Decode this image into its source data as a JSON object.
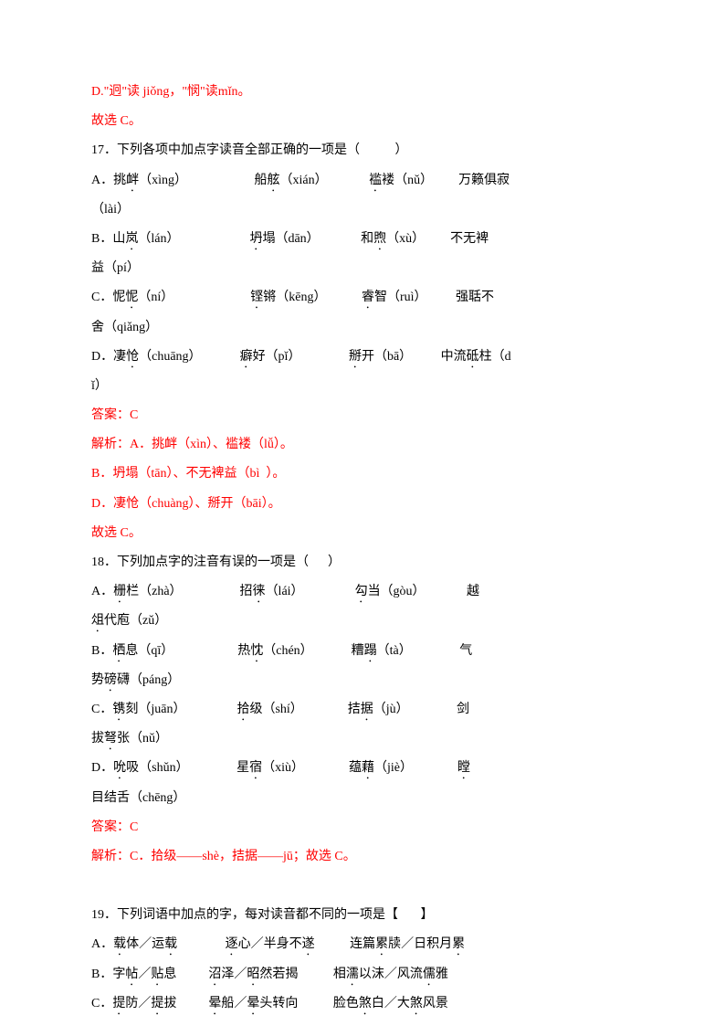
{
  "colors": {
    "text": "#000000",
    "red": "#ff0000",
    "background": "#ffffff"
  },
  "lines": {
    "l1": "D.\"迥\"读 jiǒng，\"悯\"读mǐn。",
    "l2": "故选 C。",
    "q17": "17．下列各项中加点字读音全部正确的一项是（           ）",
    "q17a1": "A．挑",
    "q17a2": "衅（xìng）",
    "q17a3": "船",
    "q17a4": "舷（xián）",
    "q17a5": "褴",
    "q17a6": "褛（nǔ）",
    "q17a7": "万籁俱寂",
    "q17a8": "（lài）",
    "q17b1": "B．山",
    "q17b2": "岚（lán）",
    "q17b3": "坍",
    "q17b4": "塌（dān）",
    "q17b5": "和",
    "q17b6": "煦（xù）",
    "q17b7": "不无裨",
    "q17b8": "益（pí）",
    "q17c1": "C．怩",
    "q17c2": "怩（ní）",
    "q17c3": "铿",
    "q17c4": "锵（kēng）",
    "q17c5": "睿",
    "q17c6": "智（ruì）",
    "q17c7": "强聒不",
    "q17c8": "舍（qiǎng）",
    "q17d1": "D．凄",
    "q17d2": "怆（chuāng）",
    "q17d3": "癖",
    "q17d4": "好（pǐ）",
    "q17d5": "掰",
    "q17d6": "开（bā）",
    "q17d7": "中流",
    "q17d8": "砥",
    "q17d9": "柱（d",
    "q17d10": "ǐ）",
    "a17_1": "答案：C",
    "a17_2": "解析：A．挑衅（xìn）、褴褛（lǚ）。",
    "a17_3": "B．坍塌（tān）、不无裨益（bì  ）。",
    "a17_4": "D．凄怆（chuàng）、掰开（bāi）。",
    "a17_5": "故选 C。",
    "q18": "18．下列加点字的注音有误的一项是（      ）",
    "q18a1": "A．",
    "q18a2": "栅",
    "q18a3": "栏（zhà）",
    "q18a4": "招",
    "q18a5": "徕",
    "q18a6": "（lái）",
    "q18a7": "勾",
    "q18a8": "当（gòu）",
    "q18a9": "越",
    "q18a10": "俎",
    "q18a11": "代庖（zǔ）",
    "q18b1": "B．",
    "q18b2": "栖",
    "q18b3": "息（qī）",
    "q18b4": "热",
    "q18b5": "忱",
    "q18b6": "（chén）",
    "q18b7": "糟",
    "q18b8": "蹋",
    "q18b9": "（tà）",
    "q18b10": "气",
    "q18b11": "势",
    "q18b12": "磅",
    "q18b13": "礴（páng）",
    "q18c1": "C．",
    "q18c2": "镌",
    "q18c3": "刻（juān）",
    "q18c4": "拾",
    "q18c5": "级（shí）",
    "q18c6": "拮",
    "q18c7": "据（jù）",
    "q18c8": "剑",
    "q18c9": "拔",
    "q18c10": "弩",
    "q18c11": "张（nǔ）",
    "q18d1": "D．",
    "q18d2": "吮",
    "q18d3": "吸（shǔn）",
    "q18d4": "星",
    "q18d5": "宿",
    "q18d6": "（xiù）",
    "q18d7": "蕴",
    "q18d8": "藉",
    "q18d9": "（jiè）",
    "q18d10": "瞠",
    "q18d11": "目结舌（chēng）",
    "a18_1": "答案：C",
    "a18_2": "解析：C．拾级——shè，拮据——jū；故选 C。",
    "q19": "19．下列词语中加点的字，每对读音都不同的一项是【       】",
    "q19a1": "A．载体／运载",
    "q19a2": "逐心／半身不遂",
    "q19a3": "连篇累牍／日积月累",
    "q19b1": "B．字帖／贴息",
    "q19b2": "沼泽／昭然若揭",
    "q19b3": "相濡以沫／风流儒雅",
    "q19c1": "C．提防／提拔",
    "q19c2": "晕船／晕头转向",
    "q19c3": "脸色煞白／大煞风景"
  }
}
